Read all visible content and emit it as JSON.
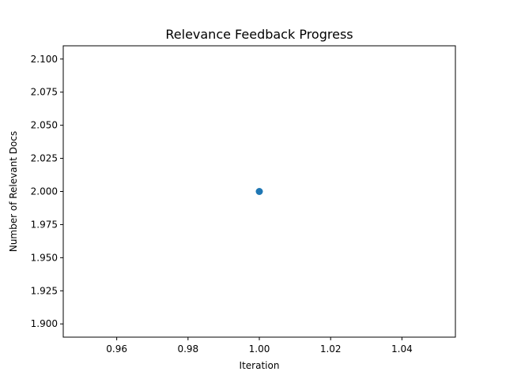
{
  "chart_data": {
    "type": "scatter",
    "title": "Relevance Feedback Progress",
    "xlabel": "Iteration",
    "ylabel": "Number of Relevant Docs",
    "xlim": [
      0.945,
      1.055
    ],
    "ylim": [
      1.89,
      2.11
    ],
    "xticks": [
      0.96,
      0.98,
      1.0,
      1.02,
      1.04
    ],
    "xtick_labels": [
      "0.96",
      "0.98",
      "1.00",
      "1.02",
      "1.04"
    ],
    "yticks": [
      1.9,
      1.925,
      1.95,
      1.975,
      2.0,
      2.025,
      2.05,
      2.075,
      2.1
    ],
    "ytick_labels": [
      "1.900",
      "1.925",
      "1.950",
      "1.975",
      "2.000",
      "2.025",
      "2.050",
      "2.075",
      "2.100"
    ],
    "points": [
      {
        "x": 1,
        "y": 2
      }
    ],
    "color": "#1f77b4",
    "grid": false,
    "legend": false
  }
}
